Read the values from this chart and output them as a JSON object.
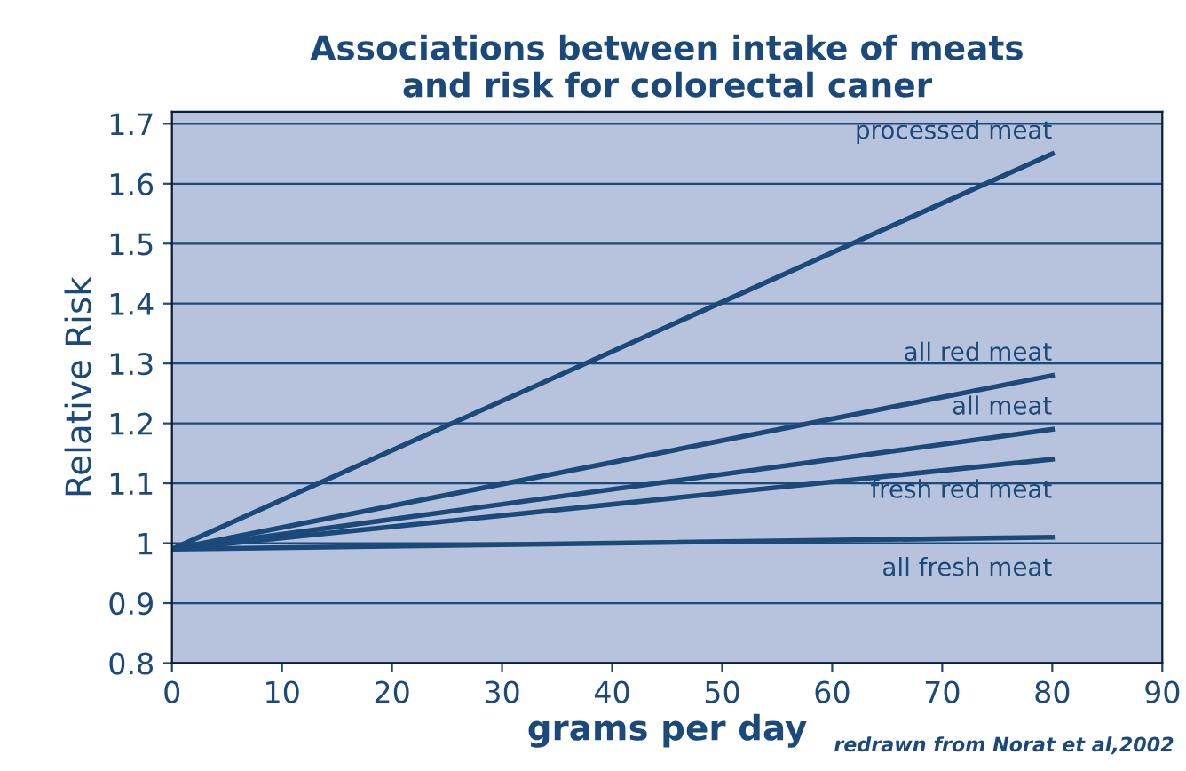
{
  "chart_data": {
    "type": "line",
    "title": "Associations between intake of meats\nand risk for colorectal caner",
    "xlabel": "grams per day",
    "ylabel": "Relative Risk",
    "x": [
      0,
      80
    ],
    "series": [
      {
        "name": "processed meat",
        "color": "#1b4a7a",
        "values": [
          0.99,
          1.65
        ]
      },
      {
        "name": "all red meat",
        "color": "#1b4a7a",
        "values": [
          0.99,
          1.28
        ]
      },
      {
        "name": "all meat",
        "color": "#1b4a7a",
        "values": [
          0.99,
          1.19
        ]
      },
      {
        "name": "fresh red meat",
        "color": "#1b4a7a",
        "values": [
          0.99,
          1.14
        ]
      },
      {
        "name": "all fresh meat",
        "color": "#1b4a7a",
        "values": [
          0.99,
          1.01
        ]
      }
    ],
    "xlim": [
      0,
      90
    ],
    "xticks": [
      0,
      10,
      20,
      30,
      40,
      50,
      60,
      70,
      80,
      90
    ],
    "ylim": [
      0.8,
      1.72
    ],
    "yticks": [
      0.8,
      0.9,
      1,
      1.1,
      1.2,
      1.3,
      1.4,
      1.5,
      1.6,
      1.7
    ],
    "grid": "y",
    "legend": false,
    "marker": "none",
    "line_style": "solid",
    "annotations": [
      "redrawn from Norat et al,2002"
    ]
  }
}
